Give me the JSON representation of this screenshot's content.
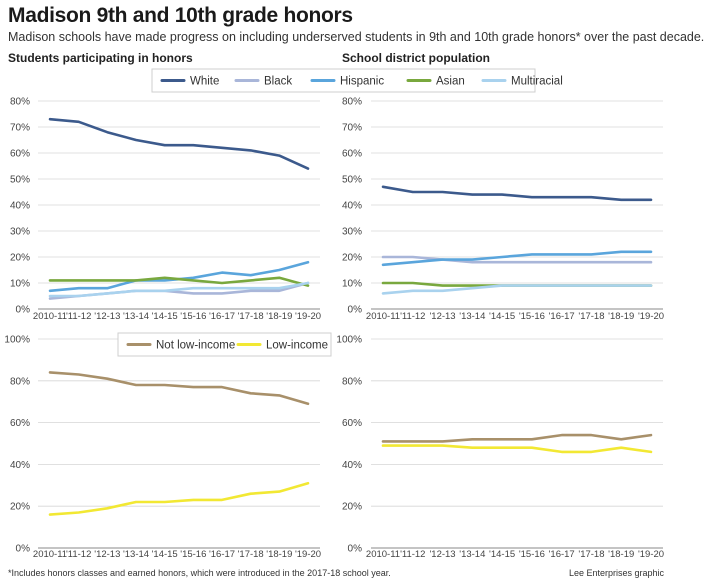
{
  "title": "Madison 9th and 10th grade honors",
  "subtitle": "Madison schools have made progress on including underserved students in 9th and 10th grade honors* over the past decade.",
  "footnote": "*Includes honors classes and earned honors, which were introduced in the 2017-18 school year.",
  "credit": "Lee Enterprises graphic",
  "legends": {
    "race": [
      {
        "name": "White",
        "color": "#3c5a8c"
      },
      {
        "name": "Black",
        "color": "#a9b6d9"
      },
      {
        "name": "Hispanic",
        "color": "#5aa5dc"
      },
      {
        "name": "Asian",
        "color": "#79a83e"
      },
      {
        "name": "Multiracial",
        "color": "#a9d2ee"
      }
    ],
    "income": [
      {
        "name": "Not low-income",
        "color": "#a8906a"
      },
      {
        "name": "Low-income",
        "color": "#f2e833"
      }
    ]
  },
  "chart_data": [
    {
      "type": "line",
      "title": "Students participating in honors",
      "categories": [
        "2010-11",
        "'11-12",
        "'12-13",
        "'13-14",
        "'14-15",
        "'15-16",
        "'16-17",
        "'17-18",
        "'18-19",
        "'19-20"
      ],
      "ylim": [
        0,
        80
      ],
      "yticks": [
        "0%",
        "10%",
        "20%",
        "30%",
        "40%",
        "50%",
        "60%",
        "70%",
        "80%"
      ],
      "grid": true,
      "legend": "top-center",
      "series": [
        {
          "name": "White",
          "color": "#3c5a8c",
          "values": [
            73,
            72,
            68,
            65,
            63,
            63,
            62,
            61,
            59,
            54
          ]
        },
        {
          "name": "Black",
          "color": "#a9b6d9",
          "values": [
            4,
            5,
            6,
            7,
            7,
            6,
            6,
            7,
            7,
            10
          ]
        },
        {
          "name": "Hispanic",
          "color": "#5aa5dc",
          "values": [
            7,
            8,
            8,
            11,
            11,
            12,
            14,
            13,
            15,
            18
          ]
        },
        {
          "name": "Asian",
          "color": "#79a83e",
          "values": [
            11,
            11,
            11,
            11,
            12,
            11,
            10,
            11,
            12,
            9
          ]
        },
        {
          "name": "Multiracial",
          "color": "#a9d2ee",
          "values": [
            5,
            5,
            6,
            7,
            7,
            8,
            8,
            8,
            8,
            10
          ]
        }
      ]
    },
    {
      "type": "line",
      "title": "School district population",
      "categories": [
        "2010-11",
        "'11-12",
        "'12-13",
        "'13-14",
        "'14-15",
        "'15-16",
        "'16-17",
        "'17-18",
        "'18-19",
        "'19-20"
      ],
      "ylim": [
        0,
        80
      ],
      "yticks": [
        "0%",
        "10%",
        "20%",
        "30%",
        "40%",
        "50%",
        "60%",
        "70%",
        "80%"
      ],
      "grid": true,
      "series": [
        {
          "name": "White",
          "color": "#3c5a8c",
          "values": [
            47,
            45,
            45,
            44,
            44,
            43,
            43,
            43,
            42,
            42
          ]
        },
        {
          "name": "Black",
          "color": "#a9b6d9",
          "values": [
            20,
            20,
            19,
            18,
            18,
            18,
            18,
            18,
            18,
            18
          ]
        },
        {
          "name": "Hispanic",
          "color": "#5aa5dc",
          "values": [
            17,
            18,
            19,
            19,
            20,
            21,
            21,
            21,
            22,
            22
          ]
        },
        {
          "name": "Asian",
          "color": "#79a83e",
          "values": [
            10,
            10,
            9,
            9,
            9,
            9,
            9,
            9,
            9,
            9
          ]
        },
        {
          "name": "Multiracial",
          "color": "#a9d2ee",
          "values": [
            6,
            7,
            7,
            8,
            9,
            9,
            9,
            9,
            9,
            9
          ]
        }
      ]
    },
    {
      "type": "line",
      "categories": [
        "2010-11",
        "'11-12",
        "'12-13",
        "'13-14",
        "'14-15",
        "'15-16",
        "'16-17",
        "'17-18",
        "'18-19",
        "'19-20"
      ],
      "ylim": [
        0,
        100
      ],
      "yticks": [
        "0%",
        "20%",
        "40%",
        "60%",
        "80%",
        "100%"
      ],
      "grid": true,
      "legend": "top-center",
      "series": [
        {
          "name": "Not low-income",
          "color": "#a8906a",
          "values": [
            84,
            83,
            81,
            78,
            78,
            77,
            77,
            74,
            73,
            69
          ]
        },
        {
          "name": "Low-income",
          "color": "#f2e833",
          "values": [
            16,
            17,
            19,
            22,
            22,
            23,
            23,
            26,
            27,
            31
          ]
        }
      ]
    },
    {
      "type": "line",
      "categories": [
        "2010-11",
        "'11-12",
        "'12-13",
        "'13-14",
        "'14-15",
        "'15-16",
        "'16-17",
        "'17-18",
        "'18-19",
        "'19-20"
      ],
      "ylim": [
        0,
        100
      ],
      "yticks": [
        "0%",
        "20%",
        "40%",
        "60%",
        "80%",
        "100%"
      ],
      "grid": true,
      "series": [
        {
          "name": "Not low-income",
          "color": "#a8906a",
          "values": [
            51,
            51,
            51,
            52,
            52,
            52,
            54,
            54,
            52,
            54
          ]
        },
        {
          "name": "Low-income",
          "color": "#f2e833",
          "values": [
            49,
            49,
            49,
            48,
            48,
            48,
            46,
            46,
            48,
            46
          ]
        }
      ]
    }
  ]
}
